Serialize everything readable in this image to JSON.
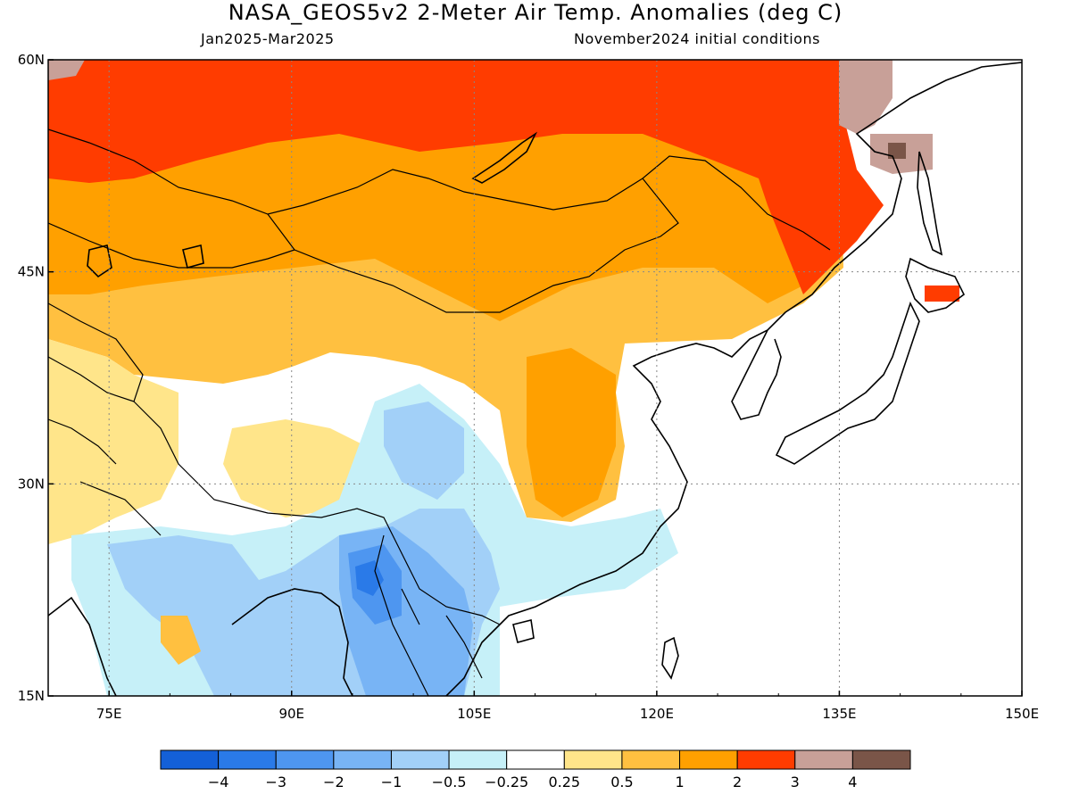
{
  "title": "NASA_GEOS5v2 2-Meter Air Temp. Anomalies (deg C)",
  "subtitle_left": "Jan2025-Mar2025",
  "subtitle_right": "November2024 initial conditions",
  "map": {
    "lon_range": [
      70,
      150
    ],
    "lat_range": [
      15,
      60
    ],
    "x_ticks": [
      {
        "value": 75,
        "label": "75E"
      },
      {
        "value": 90,
        "label": "90E"
      },
      {
        "value": 105,
        "label": "105E"
      },
      {
        "value": 120,
        "label": "120E"
      },
      {
        "value": 135,
        "label": "135E"
      },
      {
        "value": 150,
        "label": "150E"
      }
    ],
    "y_ticks": [
      {
        "value": 60,
        "label": "60N"
      },
      {
        "value": 45,
        "label": "45N"
      },
      {
        "value": 30,
        "label": "30N"
      },
      {
        "value": 15,
        "label": "15N"
      }
    ],
    "grid": "dotted"
  },
  "colorbar": {
    "colors": [
      "#1460d8",
      "#2a7ae8",
      "#4e96f0",
      "#78b4f5",
      "#a2d0f8",
      "#c6f0f8",
      "#ffffff",
      "#ffe58a",
      "#ffc040",
      "#ffa000",
      "#ff3c00",
      "#c8a098",
      "#7a5548"
    ],
    "labels": [
      "−4",
      "−3",
      "−2",
      "−1",
      "−0.5",
      "−0.25",
      "0.25",
      "0.5",
      "1",
      "2",
      "3",
      "4"
    ]
  }
}
